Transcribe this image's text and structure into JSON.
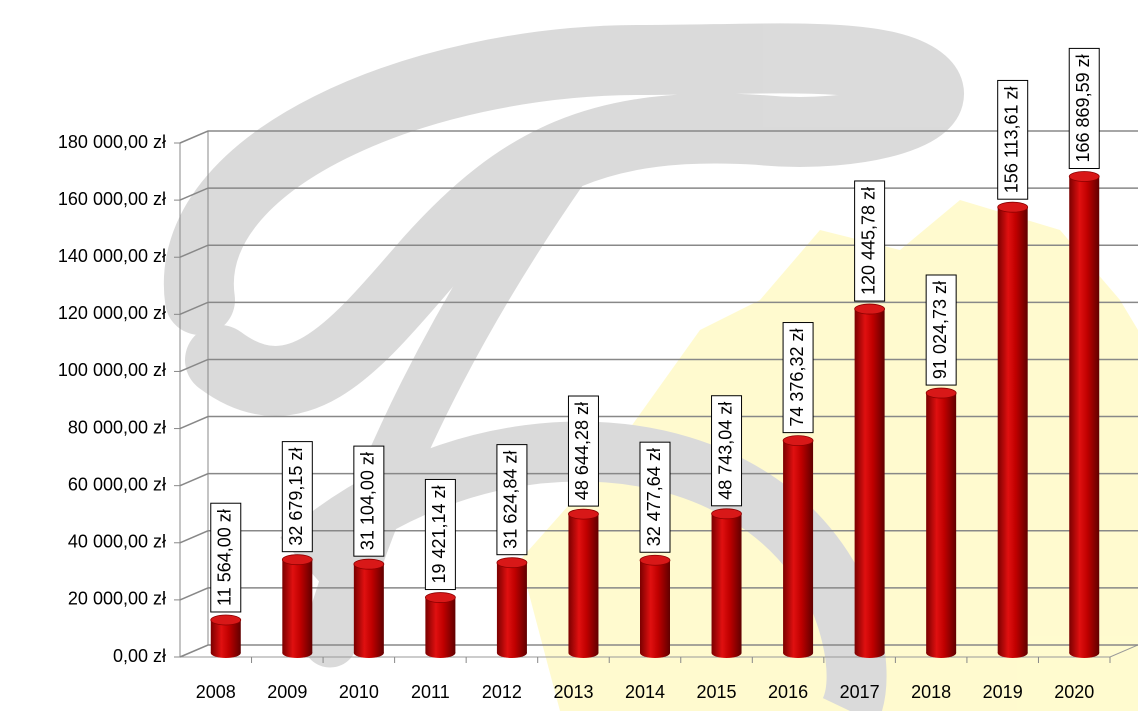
{
  "chart_data": {
    "type": "bar",
    "categories": [
      "2008",
      "2009",
      "2010",
      "2011",
      "2012",
      "2013",
      "2014",
      "2015",
      "2016",
      "2017",
      "2018",
      "2019",
      "2020"
    ],
    "values": [
      11564.0,
      32679.15,
      31104.0,
      19421.14,
      31624.84,
      48644.28,
      32477.64,
      48743.04,
      74376.32,
      120445.78,
      91024.73,
      156113.61,
      166869.59
    ],
    "value_labels": [
      "11 564,00 zł",
      "32 679,15 zł",
      "31 104,00 zł",
      "19 421,14 zł",
      "31 624,84 zł",
      "48 644,28 zł",
      "32 477,64 zł",
      "48 743,04 zł",
      "74 376,32 zł",
      "120 445,78 zł",
      "91 024,73 zł",
      "156 113,61 zł",
      "166 869,59 zł"
    ],
    "color": "#c00000",
    "ylim": [
      0,
      180000
    ],
    "yticks": [
      {
        "value": 0,
        "label": "0,00 zł"
      },
      {
        "value": 20000,
        "label": "20 000,00 zł"
      },
      {
        "value": 40000,
        "label": "40 000,00 zł"
      },
      {
        "value": 60000,
        "label": "60 000,00 zł"
      },
      {
        "value": 80000,
        "label": "80 000,00 zł"
      },
      {
        "value": 100000,
        "label": "100 000,00 zł"
      },
      {
        "value": 120000,
        "label": "120 000,00 zł"
      },
      {
        "value": 140000,
        "label": "140 000,00 zł"
      },
      {
        "value": 160000,
        "label": "160 000,00 zł"
      },
      {
        "value": 180000,
        "label": "180 000,00 zł"
      }
    ],
    "grid": true
  }
}
